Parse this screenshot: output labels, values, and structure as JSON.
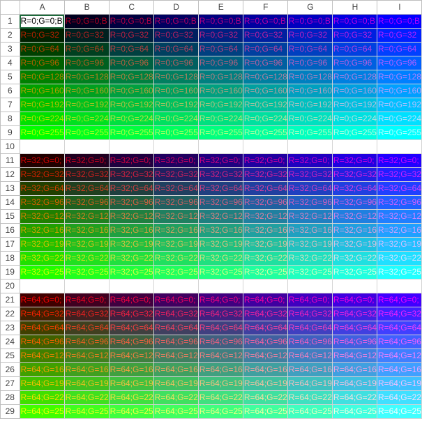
{
  "spreadsheet": {
    "column_headers": [
      "A",
      "B",
      "C",
      "D",
      "E",
      "F",
      "G",
      "H",
      "I"
    ],
    "blank_rows": [
      10,
      20
    ],
    "active_cell": "A1",
    "rows": [
      {
        "row": 1,
        "cells": [
          "R=0;G=0;B",
          "R=0;G=0;B",
          "R=0;G=0;B",
          "R=0;G=0;B",
          "R=0;G=0;B",
          "R=0;G=0;B",
          "R=0;G=0;B",
          "R=0;G=0;B",
          "R=0;G=0;B"
        ],
        "colors": [
          "#000000",
          "#000020",
          "#000040",
          "#000060",
          "#000080",
          "#0000a0",
          "#0000c0",
          "#0000e0",
          "#0000ff"
        ]
      },
      {
        "row": 2,
        "cells": [
          "R=0;G=32",
          "R=0;G=32",
          "R=0;G=32",
          "R=0;G=32",
          "R=0;G=32",
          "R=0;G=32",
          "R=0;G=32",
          "R=0;G=32",
          "R=0;G=32"
        ],
        "colors": [
          "#002000",
          "#002020",
          "#002040",
          "#002060",
          "#002080",
          "#0020a0",
          "#0020c0",
          "#0020e0",
          "#0020ff"
        ]
      },
      {
        "row": 3,
        "cells": [
          "R=0;G=64",
          "R=0;G=64",
          "R=0;G=64",
          "R=0;G=64",
          "R=0;G=64",
          "R=0;G=64",
          "R=0;G=64",
          "R=0;G=64",
          "R=0;G=64"
        ],
        "colors": [
          "#004000",
          "#004020",
          "#004040",
          "#004060",
          "#004080",
          "#0040a0",
          "#0040c0",
          "#0040e0",
          "#0040ff"
        ]
      },
      {
        "row": 4,
        "cells": [
          "R=0;G=96",
          "R=0;G=96",
          "R=0;G=96",
          "R=0;G=96",
          "R=0;G=96",
          "R=0;G=96",
          "R=0;G=96",
          "R=0;G=96",
          "R=0;G=96"
        ],
        "colors": [
          "#006000",
          "#006020",
          "#006040",
          "#006060",
          "#006080",
          "#0060a0",
          "#0060c0",
          "#0060e0",
          "#0060ff"
        ]
      },
      {
        "row": 5,
        "cells": [
          "R=0;G=128",
          "R=0;G=128",
          "R=0;G=128",
          "R=0;G=128",
          "R=0;G=128",
          "R=0;G=128",
          "R=0;G=128",
          "R=0;G=128",
          "R=0;G=128"
        ],
        "colors": [
          "#008000",
          "#008020",
          "#008040",
          "#008060",
          "#008080",
          "#0080a0",
          "#0080c0",
          "#0080e0",
          "#0080ff"
        ]
      },
      {
        "row": 6,
        "cells": [
          "R=0;G=160",
          "R=0;G=160",
          "R=0;G=160",
          "R=0;G=160",
          "R=0;G=160",
          "R=0;G=160",
          "R=0;G=160",
          "R=0;G=160",
          "R=0;G=160"
        ],
        "colors": [
          "#00a000",
          "#00a020",
          "#00a040",
          "#00a060",
          "#00a080",
          "#00a0a0",
          "#00a0c0",
          "#00a0e0",
          "#00a0ff"
        ]
      },
      {
        "row": 7,
        "cells": [
          "R=0;G=192",
          "R=0;G=192",
          "R=0;G=192",
          "R=0;G=192",
          "R=0;G=192",
          "R=0;G=192",
          "R=0;G=192",
          "R=0;G=192",
          "R=0;G=192"
        ],
        "colors": [
          "#00c000",
          "#00c020",
          "#00c040",
          "#00c060",
          "#00c080",
          "#00c0a0",
          "#00c0c0",
          "#00c0e0",
          "#00c0ff"
        ]
      },
      {
        "row": 8,
        "cells": [
          "R=0;G=224",
          "R=0;G=224",
          "R=0;G=224",
          "R=0;G=224",
          "R=0;G=224",
          "R=0;G=224",
          "R=0;G=224",
          "R=0;G=224",
          "R=0;G=224"
        ],
        "colors": [
          "#00e000",
          "#00e020",
          "#00e040",
          "#00e060",
          "#00e080",
          "#00e0a0",
          "#00e0c0",
          "#00e0e0",
          "#00e0ff"
        ]
      },
      {
        "row": 9,
        "cells": [
          "R=0;G=255",
          "R=0;G=255",
          "R=0;G=255",
          "R=0;G=255",
          "R=0;G=255",
          "R=0;G=255",
          "R=0;G=255",
          "R=0;G=255",
          "R=0;G=255"
        ],
        "colors": [
          "#00ff00",
          "#00ff20",
          "#00ff40",
          "#00ff60",
          "#00ff80",
          "#00ffa0",
          "#00ffc0",
          "#00ffe0",
          "#00ffff"
        ]
      },
      {
        "row": 11,
        "cells": [
          "R=32;G=0;",
          "R=32;G=0;",
          "R=32;G=0;",
          "R=32;G=0;",
          "R=32;G=0;",
          "R=32;G=0;",
          "R=32;G=0;",
          "R=32;G=0;",
          "R=32;G=0;"
        ],
        "colors": [
          "#200000",
          "#200020",
          "#200040",
          "#200060",
          "#200080",
          "#2000a0",
          "#2000c0",
          "#2000e0",
          "#2000ff"
        ]
      },
      {
        "row": 12,
        "cells": [
          "R=32;G=32",
          "R=32;G=32",
          "R=32;G=32",
          "R=32;G=32",
          "R=32;G=32",
          "R=32;G=32",
          "R=32;G=32",
          "R=32;G=32",
          "R=32;G=32"
        ],
        "colors": [
          "#202000",
          "#202020",
          "#202040",
          "#202060",
          "#202080",
          "#2020a0",
          "#2020c0",
          "#2020e0",
          "#2020ff"
        ]
      },
      {
        "row": 13,
        "cells": [
          "R=32;G=64",
          "R=32;G=64",
          "R=32;G=64",
          "R=32;G=64",
          "R=32;G=64",
          "R=32;G=64",
          "R=32;G=64",
          "R=32;G=64",
          "R=32;G=64"
        ],
        "colors": [
          "#204000",
          "#204020",
          "#204040",
          "#204060",
          "#204080",
          "#2040a0",
          "#2040c0",
          "#2040e0",
          "#2040ff"
        ]
      },
      {
        "row": 14,
        "cells": [
          "R=32;G=96",
          "R=32;G=96",
          "R=32;G=96",
          "R=32;G=96",
          "R=32;G=96",
          "R=32;G=96",
          "R=32;G=96",
          "R=32;G=96",
          "R=32;G=96"
        ],
        "colors": [
          "#206000",
          "#206020",
          "#206040",
          "#206060",
          "#206080",
          "#2060a0",
          "#2060c0",
          "#2060e0",
          "#2060ff"
        ]
      },
      {
        "row": 15,
        "cells": [
          "R=32;G=12",
          "R=32;G=12",
          "R=32;G=12",
          "R=32;G=12",
          "R=32;G=12",
          "R=32;G=12",
          "R=32;G=12",
          "R=32;G=12",
          "R=32;G=12"
        ],
        "colors": [
          "#208000",
          "#208020",
          "#208040",
          "#208060",
          "#208080",
          "#2080a0",
          "#2080c0",
          "#2080e0",
          "#2080ff"
        ]
      },
      {
        "row": 16,
        "cells": [
          "R=32;G=16",
          "R=32;G=16",
          "R=32;G=16",
          "R=32;G=16",
          "R=32;G=16",
          "R=32;G=16",
          "R=32;G=16",
          "R=32;G=16",
          "R=32;G=16"
        ],
        "colors": [
          "#20a000",
          "#20a020",
          "#20a040",
          "#20a060",
          "#20a080",
          "#20a0a0",
          "#20a0c0",
          "#20a0e0",
          "#20a0ff"
        ]
      },
      {
        "row": 17,
        "cells": [
          "R=32;G=19",
          "R=32;G=19",
          "R=32;G=19",
          "R=32;G=19",
          "R=32;G=19",
          "R=32;G=19",
          "R=32;G=19",
          "R=32;G=19",
          "R=32;G=19"
        ],
        "colors": [
          "#20c000",
          "#20c020",
          "#20c040",
          "#20c060",
          "#20c080",
          "#20c0a0",
          "#20c0c0",
          "#20c0e0",
          "#20c0ff"
        ]
      },
      {
        "row": 18,
        "cells": [
          "R=32;G=22",
          "R=32;G=22",
          "R=32;G=22",
          "R=32;G=22",
          "R=32;G=22",
          "R=32;G=22",
          "R=32;G=22",
          "R=32;G=22",
          "R=32;G=22"
        ],
        "colors": [
          "#20e000",
          "#20e020",
          "#20e040",
          "#20e060",
          "#20e080",
          "#20e0a0",
          "#20e0c0",
          "#20e0e0",
          "#20e0ff"
        ]
      },
      {
        "row": 19,
        "cells": [
          "R=32;G=25",
          "R=32;G=25",
          "R=32;G=25",
          "R=32;G=25",
          "R=32;G=25",
          "R=32;G=25",
          "R=32;G=25",
          "R=32;G=25",
          "R=32;G=25"
        ],
        "colors": [
          "#20ff00",
          "#20ff20",
          "#20ff40",
          "#20ff60",
          "#20ff80",
          "#20ffa0",
          "#20ffc0",
          "#20ffe0",
          "#20ffff"
        ]
      },
      {
        "row": 21,
        "cells": [
          "R=64;G=0;",
          "R=64;G=0;",
          "R=64;G=0;",
          "R=64;G=0;",
          "R=64;G=0;",
          "R=64;G=0;",
          "R=64;G=0;",
          "R=64;G=0;",
          "R=64;G=0;"
        ],
        "colors": [
          "#400000",
          "#400020",
          "#400040",
          "#400060",
          "#400080",
          "#4000a0",
          "#4000c0",
          "#4000e0",
          "#4000ff"
        ]
      },
      {
        "row": 22,
        "cells": [
          "R=64;G=32",
          "R=64;G=32",
          "R=64;G=32",
          "R=64;G=32",
          "R=64;G=32",
          "R=64;G=32",
          "R=64;G=32",
          "R=64;G=32",
          "R=64;G=32"
        ],
        "colors": [
          "#402000",
          "#402020",
          "#402040",
          "#402060",
          "#402080",
          "#4020a0",
          "#4020c0",
          "#4020e0",
          "#4020ff"
        ]
      },
      {
        "row": 23,
        "cells": [
          "R=64;G=64",
          "R=64;G=64",
          "R=64;G=64",
          "R=64;G=64",
          "R=64;G=64",
          "R=64;G=64",
          "R=64;G=64",
          "R=64;G=64",
          "R=64;G=64"
        ],
        "colors": [
          "#404000",
          "#404020",
          "#404040",
          "#404060",
          "#404080",
          "#4040a0",
          "#4040c0",
          "#4040e0",
          "#4040ff"
        ]
      },
      {
        "row": 24,
        "cells": [
          "R=64;G=96",
          "R=64;G=96",
          "R=64;G=96",
          "R=64;G=96",
          "R=64;G=96",
          "R=64;G=96",
          "R=64;G=96",
          "R=64;G=96",
          "R=64;G=96"
        ],
        "colors": [
          "#406000",
          "#406020",
          "#406040",
          "#406060",
          "#406080",
          "#4060a0",
          "#4060c0",
          "#4060e0",
          "#4060ff"
        ]
      },
      {
        "row": 25,
        "cells": [
          "R=64;G=12",
          "R=64;G=12",
          "R=64;G=12",
          "R=64;G=12",
          "R=64;G=12",
          "R=64;G=12",
          "R=64;G=12",
          "R=64;G=12",
          "R=64;G=12"
        ],
        "colors": [
          "#408000",
          "#408020",
          "#408040",
          "#408060",
          "#408080",
          "#4080a0",
          "#4080c0",
          "#4080e0",
          "#4080ff"
        ]
      },
      {
        "row": 26,
        "cells": [
          "R=64;G=16",
          "R=64;G=16",
          "R=64;G=16",
          "R=64;G=16",
          "R=64;G=16",
          "R=64;G=16",
          "R=64;G=16",
          "R=64;G=16",
          "R=64;G=16"
        ],
        "colors": [
          "#40a000",
          "#40a020",
          "#40a040",
          "#40a060",
          "#40a080",
          "#40a0a0",
          "#40a0c0",
          "#40a0e0",
          "#40a0ff"
        ]
      },
      {
        "row": 27,
        "cells": [
          "R=64;G=19",
          "R=64;G=19",
          "R=64;G=19",
          "R=64;G=19",
          "R=64;G=19",
          "R=64;G=19",
          "R=64;G=19",
          "R=64;G=19",
          "R=64;G=19"
        ],
        "colors": [
          "#40c000",
          "#40c020",
          "#40c040",
          "#40c060",
          "#40c080",
          "#40c0a0",
          "#40c0c0",
          "#40c0e0",
          "#40c0ff"
        ]
      },
      {
        "row": 28,
        "cells": [
          "R=64;G=22",
          "R=64;G=22",
          "R=64;G=22",
          "R=64;G=22",
          "R=64;G=22",
          "R=64;G=22",
          "R=64;G=22",
          "R=64;G=22",
          "R=64;G=22"
        ],
        "colors": [
          "#40e000",
          "#40e020",
          "#40e040",
          "#40e060",
          "#40e080",
          "#40e0a0",
          "#40e0c0",
          "#40e0e0",
          "#40e0ff"
        ]
      },
      {
        "row": 29,
        "cells": [
          "R=64;G=25",
          "R=64;G=25",
          "R=64;G=25",
          "R=64;G=25",
          "R=64;G=25",
          "R=64;G=25",
          "R=64;G=25",
          "R=64;G=25",
          "R=64;G=25"
        ],
        "colors": [
          "#40ff00",
          "#40ff20",
          "#40ff40",
          "#40ff60",
          "#40ff80",
          "#40ffa0",
          "#40ffc0",
          "#40ffe0",
          "#40ffff"
        ]
      }
    ],
    "cell_a1_text": "R=0;G=0;B"
  }
}
